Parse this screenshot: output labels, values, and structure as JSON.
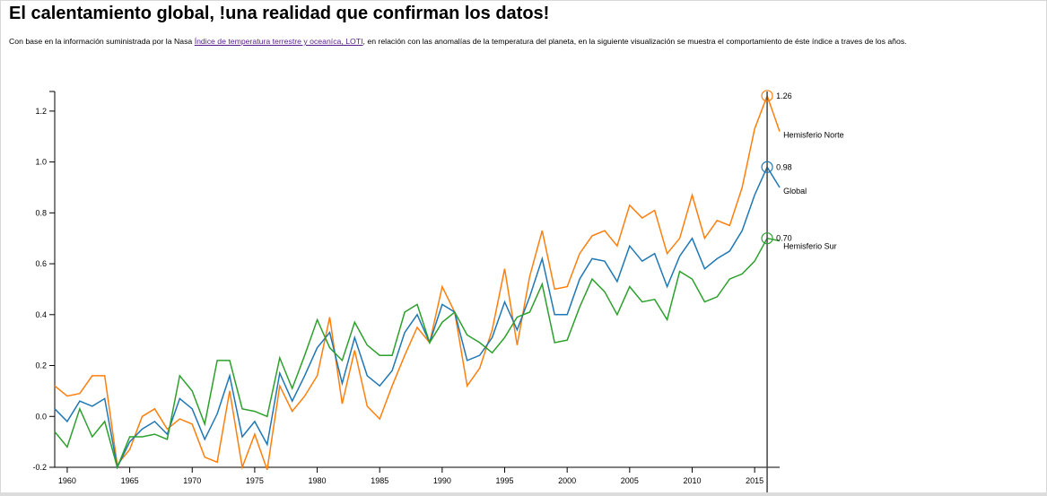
{
  "page": {
    "title": "El calentamiento global, !una realidad que confirman los datos!",
    "desc_before": "Con base en la información suministrada por la Nasa ",
    "desc_link": "Índice de temperatura terrestre y oceaníca, LOTI",
    "desc_after": ", en relación con las anomalías de la temperatura del planeta, en la siguiente visualización se muestra el comportamiento de éste índice a traves de los años."
  },
  "chart_data": {
    "type": "line",
    "title": "",
    "xlabel": "",
    "ylabel": "",
    "xlim": [
      1959,
      2017
    ],
    "ylim": [
      -0.2,
      1.27
    ],
    "x_ticks": [
      1960,
      1965,
      1970,
      1975,
      1980,
      1985,
      1990,
      1995,
      2000,
      2005,
      2010,
      2015
    ],
    "y_ticks": [
      -0.2,
      0.0,
      0.2,
      0.4,
      0.6,
      0.8,
      1.0,
      1.2
    ],
    "y_tick_labels": [
      "-0.2",
      "0.0",
      "0.2",
      "0.4",
      "0.6",
      "0.8",
      "1.0",
      "1.2"
    ],
    "grid": false,
    "x": [
      1959,
      1960,
      1961,
      1962,
      1963,
      1964,
      1965,
      1966,
      1967,
      1968,
      1969,
      1970,
      1971,
      1972,
      1973,
      1974,
      1975,
      1976,
      1977,
      1978,
      1979,
      1980,
      1981,
      1982,
      1983,
      1984,
      1985,
      1986,
      1987,
      1988,
      1989,
      1990,
      1991,
      1992,
      1993,
      1994,
      1995,
      1996,
      1997,
      1998,
      1999,
      2000,
      2001,
      2002,
      2003,
      2004,
      2005,
      2006,
      2007,
      2008,
      2009,
      2010,
      2011,
      2012,
      2013,
      2014,
      2015,
      2016,
      2017
    ],
    "series": [
      {
        "name": "Hemisferio Norte",
        "color": "#ff7f0e",
        "values": [
          0.12,
          0.08,
          0.09,
          0.16,
          0.16,
          -0.19,
          -0.13,
          0.0,
          0.03,
          -0.05,
          -0.01,
          -0.03,
          -0.16,
          -0.18,
          0.1,
          -0.2,
          -0.07,
          -0.21,
          0.12,
          0.02,
          0.08,
          0.16,
          0.39,
          0.05,
          0.26,
          0.04,
          -0.01,
          0.12,
          0.24,
          0.35,
          0.29,
          0.51,
          0.41,
          0.12,
          0.19,
          0.34,
          0.58,
          0.28,
          0.55,
          0.73,
          0.5,
          0.51,
          0.64,
          0.71,
          0.73,
          0.67,
          0.83,
          0.78,
          0.81,
          0.64,
          0.7,
          0.87,
          0.7,
          0.77,
          0.75,
          0.9,
          1.13,
          1.26,
          1.12
        ],
        "end_value_label": "1.26"
      },
      {
        "name": "Global",
        "color": "#1f77b4",
        "values": [
          0.03,
          -0.02,
          0.06,
          0.04,
          0.07,
          -0.2,
          -0.1,
          -0.05,
          -0.02,
          -0.07,
          0.07,
          0.03,
          -0.09,
          0.01,
          0.16,
          -0.08,
          -0.02,
          -0.11,
          0.17,
          0.06,
          0.16,
          0.27,
          0.33,
          0.13,
          0.31,
          0.16,
          0.12,
          0.18,
          0.33,
          0.4,
          0.29,
          0.44,
          0.41,
          0.22,
          0.24,
          0.31,
          0.45,
          0.34,
          0.47,
          0.62,
          0.4,
          0.4,
          0.54,
          0.62,
          0.61,
          0.53,
          0.67,
          0.61,
          0.64,
          0.51,
          0.63,
          0.7,
          0.58,
          0.62,
          0.65,
          0.73,
          0.87,
          0.98,
          0.9
        ],
        "end_value_label": "0.98"
      },
      {
        "name": "Hemisferio Sur",
        "color": "#2ca02c",
        "values": [
          -0.06,
          -0.12,
          0.03,
          -0.08,
          -0.02,
          -0.2,
          -0.08,
          -0.08,
          -0.07,
          -0.09,
          0.16,
          0.1,
          -0.03,
          0.22,
          0.22,
          0.03,
          0.02,
          0.0,
          0.23,
          0.11,
          0.24,
          0.38,
          0.27,
          0.22,
          0.37,
          0.28,
          0.24,
          0.24,
          0.41,
          0.44,
          0.29,
          0.37,
          0.41,
          0.32,
          0.29,
          0.25,
          0.31,
          0.39,
          0.41,
          0.52,
          0.29,
          0.3,
          0.43,
          0.54,
          0.49,
          0.4,
          0.51,
          0.45,
          0.46,
          0.38,
          0.57,
          0.54,
          0.45,
          0.47,
          0.54,
          0.56,
          0.61,
          0.7,
          0.69
        ],
        "end_value_label": "0.70"
      }
    ],
    "highlight_year": 2016
  }
}
